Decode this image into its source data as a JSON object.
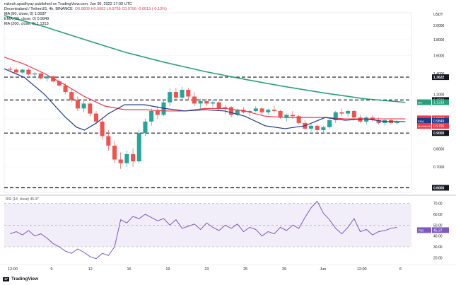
{
  "header": {
    "author": "rakesh.upadhyay published on TradingView.com, Jun 05, 2022 17:09 UTC",
    "symbol": "Decentraland / TetherUS, 4h, BINANCE",
    "ohlc": "O0.9809  H0.9902  L0.9756  C0.9796  -0.0013 (-0.13%)",
    "ma50": "MA (50, close, 0)  1.0037",
    "ema20": "EMA (20, close, 0)  0.9849",
    "ma200": "MA (200, close, 0)  1.1313"
  },
  "currency_label": "USDT",
  "brand": {
    "logo_text": "17",
    "name": "TradingView"
  },
  "colors": {
    "up": "#26a69a",
    "down": "#ef5350",
    "ma50": "#f23645",
    "ema20": "#1e3a8a",
    "ma200": "#26a17b",
    "rsi": "#7e57c2",
    "level_tag": "#131722"
  },
  "chart_data": [
    {
      "type": "candlestick",
      "title": "Decentraland / TetherUS, 4h, BINANCE",
      "y_scale": "log",
      "ylim": [
        0.58,
        2.15
      ],
      "y_ticks": [
        "2.0000",
        "1.8000",
        "1.6000",
        "1.4000",
        "1.2000",
        "1.0000",
        "0.8000",
        "0.7000"
      ],
      "y_tick_values": [
        2.0,
        1.8,
        1.6,
        1.4,
        1.2,
        1.0,
        0.8,
        0.7
      ],
      "x_ticks": [
        "12:00",
        "9",
        "12",
        "16",
        "19",
        "23",
        "25",
        "29",
        "Jun",
        "12:00",
        "6"
      ],
      "horizontal_levels": [
        {
          "value": 1.3622,
          "label": "1.3622",
          "style": "dashed"
        },
        {
          "value": 1.15,
          "label": "1.1500",
          "style": "dashed"
        },
        {
          "value": 0.9,
          "label": "0.9000",
          "style": "dashed"
        },
        {
          "value": 0.6,
          "label": "0.6000",
          "style": "dashed"
        }
      ],
      "price_tags": [
        {
          "label": "MA",
          "value": "1.1313",
          "color": "#26a17b"
        },
        {
          "label": "MA",
          "value": "1.0037",
          "color": "#f23645"
        },
        {
          "label": "EMA",
          "value": "0.9849",
          "color": "#1e3a8a"
        },
        {
          "label": "MANAUSDT",
          "value": "0.9796",
          "color": "#f23645"
        }
      ],
      "series": [
        {
          "name": "MA (200, close, 0)",
          "x": [
            0,
            10,
            20,
            30,
            40,
            50,
            60,
            70,
            80,
            90,
            100
          ],
          "values": [
            2.15,
            1.98,
            1.8,
            1.64,
            1.52,
            1.42,
            1.34,
            1.27,
            1.21,
            1.16,
            1.13
          ]
        },
        {
          "name": "MA (50, close, 0)",
          "x": [
            0,
            5,
            10,
            15,
            20,
            25,
            30,
            35,
            40,
            45,
            50,
            55,
            60,
            65,
            70,
            75,
            80,
            85,
            90,
            95,
            100
          ],
          "values": [
            1.58,
            1.5,
            1.4,
            1.29,
            1.18,
            1.1,
            1.07,
            1.07,
            1.06,
            1.06,
            1.08,
            1.08,
            1.06,
            1.02,
            1.01,
            1.01,
            1.01,
            1.0,
            1.0,
            1.0,
            1.0
          ]
        },
        {
          "name": "EMA (20, close, 0)",
          "x": [
            0,
            5,
            10,
            15,
            18,
            20,
            23,
            26,
            30,
            35,
            40,
            45,
            50,
            55,
            60,
            65,
            70,
            75,
            80,
            85,
            90,
            95,
            100
          ],
          "values": [
            1.45,
            1.36,
            1.2,
            1.02,
            0.94,
            0.92,
            0.97,
            1.04,
            1.11,
            1.11,
            1.08,
            1.06,
            1.07,
            1.06,
            1.02,
            0.95,
            0.93,
            0.95,
            1.01,
            0.99,
            1.0,
            0.98,
            0.98
          ]
        }
      ],
      "candles": [
        [
          1.45,
          1.47,
          1.42,
          1.44
        ],
        [
          1.44,
          1.46,
          1.4,
          1.41
        ],
        [
          1.41,
          1.45,
          1.4,
          1.44
        ],
        [
          1.44,
          1.45,
          1.38,
          1.39
        ],
        [
          1.39,
          1.42,
          1.36,
          1.4
        ],
        [
          1.4,
          1.41,
          1.34,
          1.35
        ],
        [
          1.35,
          1.38,
          1.32,
          1.37
        ],
        [
          1.37,
          1.38,
          1.31,
          1.32
        ],
        [
          1.32,
          1.34,
          1.27,
          1.28
        ],
        [
          1.28,
          1.3,
          1.2,
          1.22
        ],
        [
          1.22,
          1.25,
          1.13,
          1.15
        ],
        [
          1.15,
          1.18,
          1.06,
          1.08
        ],
        [
          1.08,
          1.14,
          1.05,
          1.12
        ],
        [
          1.12,
          1.13,
          1.02,
          1.04
        ],
        [
          1.04,
          1.06,
          0.96,
          0.98
        ],
        [
          0.98,
          1.0,
          0.86,
          0.88
        ],
        [
          0.88,
          0.92,
          0.79,
          0.82
        ],
        [
          0.82,
          0.85,
          0.72,
          0.74
        ],
        [
          0.74,
          0.78,
          0.69,
          0.72
        ],
        [
          0.72,
          0.79,
          0.7,
          0.77
        ],
        [
          0.77,
          0.8,
          0.7,
          0.73
        ],
        [
          0.73,
          0.92,
          0.72,
          0.9
        ],
        [
          0.9,
          1.0,
          0.88,
          0.98
        ],
        [
          0.98,
          1.08,
          0.95,
          1.06
        ],
        [
          1.06,
          1.1,
          1.0,
          1.03
        ],
        [
          1.03,
          1.15,
          1.02,
          1.13
        ],
        [
          1.13,
          1.25,
          1.1,
          1.22
        ],
        [
          1.22,
          1.26,
          1.14,
          1.17
        ],
        [
          1.17,
          1.27,
          1.15,
          1.24
        ],
        [
          1.24,
          1.26,
          1.15,
          1.18
        ],
        [
          1.18,
          1.22,
          1.1,
          1.12
        ],
        [
          1.12,
          1.16,
          1.08,
          1.14
        ],
        [
          1.14,
          1.16,
          1.1,
          1.12
        ],
        [
          1.12,
          1.15,
          1.09,
          1.13
        ],
        [
          1.13,
          1.14,
          1.06,
          1.08
        ],
        [
          1.08,
          1.11,
          1.04,
          1.09
        ],
        [
          1.09,
          1.1,
          1.01,
          1.03
        ],
        [
          1.03,
          1.08,
          1.02,
          1.07
        ],
        [
          1.07,
          1.09,
          1.04,
          1.05
        ],
        [
          1.05,
          1.07,
          1.02,
          1.06
        ],
        [
          1.06,
          1.1,
          1.05,
          1.08
        ],
        [
          1.08,
          1.09,
          1.03,
          1.05
        ],
        [
          1.05,
          1.08,
          1.03,
          1.07
        ],
        [
          1.07,
          1.1,
          1.05,
          1.06
        ],
        [
          1.06,
          1.07,
          1.0,
          1.01
        ],
        [
          1.01,
          1.04,
          0.98,
          1.03
        ],
        [
          1.03,
          1.06,
          1.0,
          1.02
        ],
        [
          1.02,
          1.03,
          0.96,
          0.97
        ],
        [
          0.97,
          0.99,
          0.92,
          0.93
        ],
        [
          0.93,
          0.96,
          0.91,
          0.95
        ],
        [
          0.95,
          0.96,
          0.9,
          0.92
        ],
        [
          0.92,
          0.95,
          0.9,
          0.94
        ],
        [
          0.94,
          1.0,
          0.93,
          0.99
        ],
        [
          0.99,
          1.06,
          0.97,
          1.05
        ],
        [
          1.05,
          1.08,
          1.02,
          1.04
        ],
        [
          1.04,
          1.07,
          1.01,
          1.06
        ],
        [
          1.06,
          1.07,
          1.0,
          1.01
        ],
        [
          1.01,
          1.03,
          0.97,
          0.98
        ],
        [
          0.98,
          1.02,
          0.96,
          1.01
        ],
        [
          1.01,
          1.03,
          0.98,
          0.99
        ],
        [
          0.99,
          1.01,
          0.96,
          0.97
        ],
        [
          0.97,
          1.0,
          0.95,
          0.99
        ],
        [
          0.99,
          1.0,
          0.96,
          0.97
        ],
        [
          0.97,
          0.99,
          0.96,
          0.98
        ]
      ]
    },
    {
      "type": "line",
      "title": "RSI (14, close) 45.37",
      "ylim": [
        15,
        75
      ],
      "y_ticks": [
        "70.00",
        "60.00",
        "50.00",
        "40.00",
        "30.00",
        "20.00"
      ],
      "y_tick_values": [
        70,
        60,
        50,
        40,
        30,
        20
      ],
      "band": [
        30,
        70
      ],
      "current": {
        "label": "RSI",
        "value": "45.37"
      },
      "series": [
        {
          "name": "RSI",
          "values": [
            42,
            44,
            41,
            45,
            40,
            42,
            38,
            33,
            30,
            26,
            24,
            28,
            25,
            21,
            19,
            24,
            22,
            30,
            55,
            52,
            58,
            56,
            60,
            57,
            54,
            56,
            50,
            55,
            47,
            49,
            51,
            46,
            52,
            48,
            45,
            50,
            47,
            51,
            44,
            48,
            46,
            40,
            44,
            42,
            48,
            45,
            50,
            47,
            57,
            66,
            72,
            61,
            55,
            47,
            42,
            48,
            56,
            44,
            46,
            41,
            44,
            45,
            47,
            48
          ]
        }
      ]
    }
  ]
}
